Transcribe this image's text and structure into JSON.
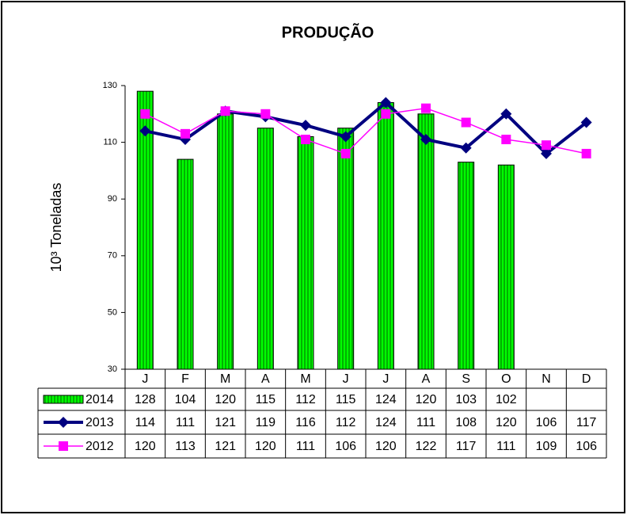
{
  "chart_data": {
    "type": "combo",
    "title": "PRODUÇÃO",
    "y_label": "10³ Toneladas",
    "categories": [
      "J",
      "F",
      "M",
      "A",
      "M",
      "J",
      "J",
      "A",
      "S",
      "O",
      "N",
      "D"
    ],
    "ylim": [
      30,
      130
    ],
    "yticks": [
      30,
      50,
      70,
      90,
      110,
      130
    ],
    "grid": false,
    "series": [
      {
        "name": "2014",
        "type": "bar",
        "color": "#00ff00",
        "stripe": "#008000",
        "values": [
          128,
          104,
          120,
          115,
          112,
          115,
          124,
          120,
          103,
          102,
          null,
          null
        ]
      },
      {
        "name": "2013",
        "type": "line",
        "marker": "diamond",
        "color": "#000080",
        "values": [
          114,
          111,
          121,
          119,
          116,
          112,
          124,
          111,
          108,
          120,
          106,
          117
        ]
      },
      {
        "name": "2012",
        "type": "line",
        "marker": "square",
        "color": "#ff00ff",
        "values": [
          120,
          113,
          121,
          120,
          111,
          106,
          120,
          122,
          117,
          111,
          109,
          106
        ]
      }
    ]
  }
}
